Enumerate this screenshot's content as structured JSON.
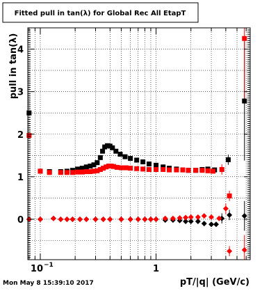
{
  "chart_data": {
    "type": "scatter",
    "title": "Fitted pull in tan(λ) for Global Rec All EtapT",
    "xlabel": "pT/|q| (GeV/c)",
    "ylabel": "pull in tan(λ)",
    "x_scale": "log",
    "xlim": [
      0.078,
      6.5
    ],
    "ylim": [
      -0.95,
      4.5
    ],
    "grid": true,
    "x_tick_labels": [
      {
        "value": 0.1,
        "base": "10",
        "exp": "−1"
      },
      {
        "value": 1,
        "base": "1",
        "exp": ""
      }
    ],
    "y_tick_labels": [
      {
        "value": 0,
        "label": "0"
      },
      {
        "value": 1,
        "label": "1"
      },
      {
        "value": 2,
        "label": "2"
      },
      {
        "value": 3,
        "label": "3"
      },
      {
        "value": 4,
        "label": "4"
      }
    ],
    "colors": {
      "black_series": "#000000",
      "red_series": "#ff0000"
    },
    "series": [
      {
        "color_key": "black_series",
        "role": "sigma",
        "marker": "square",
        "points": [
          [
            0.08,
            2.5
          ],
          [
            0.1,
            1.13
          ],
          [
            0.12,
            1.12
          ],
          [
            0.15,
            1.12
          ],
          [
            0.17,
            1.13
          ],
          [
            0.19,
            1.15
          ],
          [
            0.21,
            1.18
          ],
          [
            0.23,
            1.2
          ],
          [
            0.25,
            1.23
          ],
          [
            0.27,
            1.25
          ],
          [
            0.29,
            1.28
          ],
          [
            0.31,
            1.33
          ],
          [
            0.33,
            1.45
          ],
          [
            0.345,
            1.6
          ],
          [
            0.36,
            1.7
          ],
          [
            0.38,
            1.73
          ],
          [
            0.4,
            1.72
          ],
          [
            0.42,
            1.68
          ],
          [
            0.45,
            1.6
          ],
          [
            0.49,
            1.53
          ],
          [
            0.54,
            1.47
          ],
          [
            0.6,
            1.43
          ],
          [
            0.68,
            1.39
          ],
          [
            0.77,
            1.35
          ],
          [
            0.87,
            1.3
          ],
          [
            1.0,
            1.27
          ],
          [
            1.15,
            1.23
          ],
          [
            1.3,
            1.2
          ],
          [
            1.5,
            1.18
          ],
          [
            1.7,
            1.16
          ],
          [
            1.9,
            1.15
          ],
          [
            2.2,
            1.15
          ],
          [
            2.5,
            1.17
          ],
          [
            2.8,
            1.18
          ],
          [
            3.2,
            1.16
          ],
          [
            4.2,
            1.4
          ],
          [
            5.8,
            2.78
          ]
        ]
      },
      {
        "color_key": "red_series",
        "role": "sigma",
        "marker": "square",
        "points": [
          [
            0.08,
            1.97
          ],
          [
            0.1,
            1.13
          ],
          [
            0.12,
            1.1
          ],
          [
            0.15,
            1.1
          ],
          [
            0.17,
            1.1
          ],
          [
            0.19,
            1.1
          ],
          [
            0.21,
            1.11
          ],
          [
            0.23,
            1.11
          ],
          [
            0.25,
            1.12
          ],
          [
            0.27,
            1.12
          ],
          [
            0.29,
            1.13
          ],
          [
            0.31,
            1.14
          ],
          [
            0.33,
            1.17
          ],
          [
            0.35,
            1.2
          ],
          [
            0.37,
            1.23
          ],
          [
            0.39,
            1.25
          ],
          [
            0.41,
            1.25
          ],
          [
            0.43,
            1.24
          ],
          [
            0.46,
            1.22
          ],
          [
            0.5,
            1.21
          ],
          [
            0.55,
            1.21
          ],
          [
            0.6,
            1.2
          ],
          [
            0.68,
            1.19
          ],
          [
            0.77,
            1.18
          ],
          [
            0.87,
            1.17
          ],
          [
            1.0,
            1.17
          ],
          [
            1.15,
            1.17
          ],
          [
            1.3,
            1.16
          ],
          [
            1.5,
            1.16
          ],
          [
            1.7,
            1.16
          ],
          [
            1.9,
            1.15
          ],
          [
            2.2,
            1.15
          ],
          [
            2.5,
            1.15
          ],
          [
            2.8,
            1.14
          ],
          [
            3.1,
            1.13
          ],
          [
            3.7,
            1.17
          ],
          [
            4.3,
            0.55
          ],
          [
            5.8,
            4.25
          ]
        ]
      },
      {
        "color_key": "black_series",
        "role": "mean",
        "marker": "diamond",
        "points": [
          [
            0.08,
            0.0
          ],
          [
            0.1,
            0.0
          ],
          [
            0.13,
            0.02
          ],
          [
            0.15,
            0.0
          ],
          [
            0.17,
            0.0
          ],
          [
            0.19,
            0.0
          ],
          [
            0.22,
            0.0
          ],
          [
            0.25,
            0.0
          ],
          [
            0.3,
            0.0
          ],
          [
            0.35,
            0.0
          ],
          [
            0.4,
            0.0
          ],
          [
            0.5,
            0.0
          ],
          [
            0.6,
            0.0
          ],
          [
            0.7,
            0.0
          ],
          [
            0.8,
            0.0
          ],
          [
            0.9,
            0.0
          ],
          [
            1.0,
            0.0
          ],
          [
            1.2,
            -0.02
          ],
          [
            1.4,
            -0.02
          ],
          [
            1.6,
            -0.03
          ],
          [
            1.8,
            -0.05
          ],
          [
            2.0,
            -0.05
          ],
          [
            2.3,
            -0.05
          ],
          [
            2.6,
            -0.1
          ],
          [
            3.0,
            -0.12
          ],
          [
            3.3,
            -0.12
          ],
          [
            3.7,
            0.02
          ],
          [
            4.3,
            0.1
          ],
          [
            5.8,
            0.08
          ]
        ]
      },
      {
        "color_key": "red_series",
        "role": "mean",
        "marker": "diamond",
        "points": [
          [
            0.08,
            0.0
          ],
          [
            0.1,
            0.0
          ],
          [
            0.13,
            0.02
          ],
          [
            0.15,
            0.0
          ],
          [
            0.17,
            0.0
          ],
          [
            0.19,
            0.0
          ],
          [
            0.22,
            0.0
          ],
          [
            0.25,
            0.0
          ],
          [
            0.3,
            0.0
          ],
          [
            0.35,
            0.0
          ],
          [
            0.4,
            0.0
          ],
          [
            0.5,
            0.0
          ],
          [
            0.6,
            0.0
          ],
          [
            0.7,
            0.0
          ],
          [
            0.8,
            0.0
          ],
          [
            0.9,
            0.0
          ],
          [
            1.0,
            0.0
          ],
          [
            1.2,
            0.02
          ],
          [
            1.4,
            0.02
          ],
          [
            1.6,
            0.03
          ],
          [
            1.8,
            0.04
          ],
          [
            2.0,
            0.05
          ],
          [
            2.3,
            0.05
          ],
          [
            2.6,
            0.08
          ],
          [
            3.0,
            0.05
          ],
          [
            3.5,
            0.02
          ],
          [
            4.0,
            0.25
          ],
          [
            4.3,
            -0.75
          ],
          [
            5.8,
            -0.72
          ]
        ]
      }
    ]
  },
  "timestamp": "Mon May  8 15:39:10 2017"
}
